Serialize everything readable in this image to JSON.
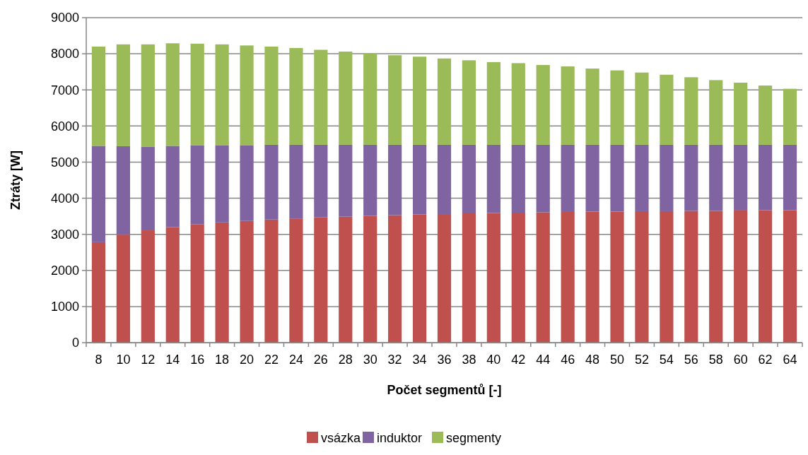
{
  "chart_data": {
    "type": "bar",
    "stacked": true,
    "xlabel": "Počet segmentů [-]",
    "ylabel": "Ztráty [W]",
    "categories": [
      "8",
      "10",
      "12",
      "14",
      "16",
      "18",
      "20",
      "22",
      "24",
      "26",
      "28",
      "30",
      "32",
      "34",
      "36",
      "38",
      "40",
      "42",
      "44",
      "46",
      "48",
      "50",
      "52",
      "54",
      "56",
      "58",
      "60",
      "62",
      "64"
    ],
    "series": [
      {
        "name": "vsázka",
        "color": "#c0504d",
        "values": [
          2780,
          2990,
          3110,
          3200,
          3280,
          3330,
          3370,
          3410,
          3440,
          3470,
          3490,
          3510,
          3530,
          3550,
          3560,
          3580,
          3590,
          3600,
          3610,
          3620,
          3630,
          3630,
          3640,
          3640,
          3650,
          3650,
          3660,
          3670,
          3670
        ]
      },
      {
        "name": "induktor",
        "color": "#8064a2",
        "values": [
          2670,
          2450,
          2320,
          2250,
          2180,
          2140,
          2100,
          2070,
          2040,
          2010,
          1990,
          1970,
          1950,
          1930,
          1920,
          1900,
          1890,
          1880,
          1870,
          1860,
          1850,
          1850,
          1840,
          1840,
          1830,
          1830,
          1820,
          1810,
          1810
        ]
      },
      {
        "name": "segmenty",
        "color": "#9bbb59",
        "values": [
          2750,
          2820,
          2830,
          2840,
          2820,
          2790,
          2760,
          2720,
          2680,
          2630,
          2580,
          2540,
          2480,
          2440,
          2390,
          2340,
          2290,
          2260,
          2210,
          2170,
          2110,
          2060,
          2000,
          1940,
          1870,
          1790,
          1720,
          1640,
          1550
        ]
      }
    ],
    "ylim": [
      0,
      9000
    ],
    "yticks": [
      0,
      1000,
      2000,
      3000,
      4000,
      5000,
      6000,
      7000,
      8000,
      9000
    ],
    "grid": "y",
    "legend": "bottom"
  }
}
